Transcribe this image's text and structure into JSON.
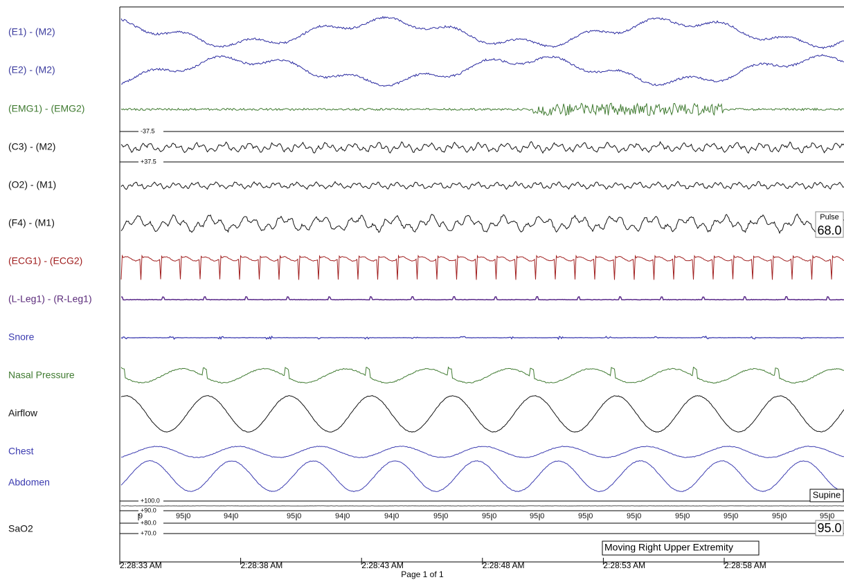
{
  "channels": [
    {
      "label": "(E1) - (M2)"
    },
    {
      "label": "(E2) - (M2)"
    },
    {
      "label": "(EMG1) - (EMG2)"
    },
    {
      "label": "(C3) - (M2)"
    },
    {
      "label": "(O2) - (M1)"
    },
    {
      "label": "(F4) - (M1)"
    },
    {
      "label": "(ECG1) - (ECG2)"
    },
    {
      "label": "(L-Leg1) - (R-Leg1)"
    },
    {
      "label": "Snore"
    },
    {
      "label": "Nasal Pressure"
    },
    {
      "label": "Airflow"
    },
    {
      "label": "Chest"
    },
    {
      "label": "Abdomen"
    },
    {
      "label": "SaO2"
    }
  ],
  "scale_labels": [
    "-37.5",
    "+37.5"
  ],
  "pulse": {
    "label": "Pulse",
    "value": "68.0"
  },
  "position": "Supine",
  "sao2_scale": [
    "+100.0",
    "+90.0",
    "+80.0",
    "+70.0"
  ],
  "sao2_values": [
    "9",
    "95.0",
    "94.0",
    "95.0",
    "94.0",
    "94.0",
    "95.0",
    "95.0",
    "95.0",
    "95.0",
    "95.0",
    "95.0",
    "95.0",
    "95.0",
    "95.0"
  ],
  "sao2_current": "95.0",
  "event": "Moving Right Upper Extremity",
  "times": [
    "2:28:33 AM",
    "2:28:38 AM",
    "2:28:43 AM",
    "2:28:48 AM",
    "2:28:53 AM",
    "2:28:58 AM"
  ],
  "footer": "Page 1 of 1"
}
